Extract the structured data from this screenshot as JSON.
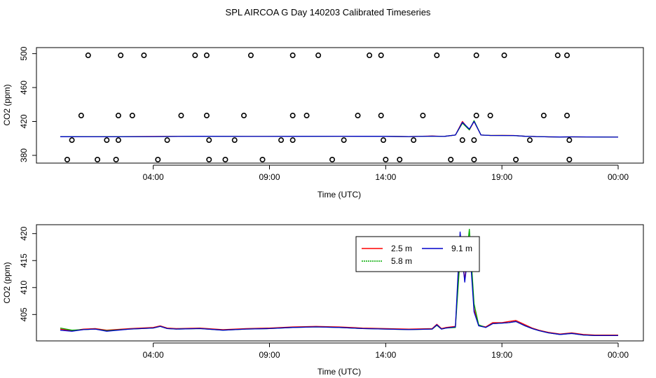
{
  "figure_title": "SPL AIRCOA G  Day 140203  Calibrated Timeseries",
  "colors": {
    "2.5 m": "#ff0000",
    "5.8 m": "#00aa00",
    "9.1 m": "#0000cc",
    "flag": "#000000"
  },
  "chart_data": [
    {
      "type": "scatter",
      "panel": "top",
      "xlabel": "Time (UTC)",
      "ylabel": "CO2 (ppm)",
      "x_tick_labels": [
        "04:00",
        "09:00",
        "14:00",
        "19:00",
        "00:00"
      ],
      "x_ticks": [
        4,
        9,
        14,
        19,
        24
      ],
      "y_ticks": [
        380,
        420,
        460,
        500
      ],
      "xlim": [
        0,
        24
      ],
      "ylim": [
        375,
        503
      ],
      "grid": false,
      "flag_points": [
        {
          "x": 0.3,
          "y": 375
        },
        {
          "x": 0.5,
          "y": 398
        },
        {
          "x": 0.9,
          "y": 427
        },
        {
          "x": 1.2,
          "y": 498
        },
        {
          "x": 1.6,
          "y": 375
        },
        {
          "x": 2.0,
          "y": 398
        },
        {
          "x": 2.4,
          "y": 375
        },
        {
          "x": 2.5,
          "y": 398
        },
        {
          "x": 2.5,
          "y": 427
        },
        {
          "x": 2.6,
          "y": 498
        },
        {
          "x": 3.1,
          "y": 427
        },
        {
          "x": 3.6,
          "y": 498
        },
        {
          "x": 4.2,
          "y": 375
        },
        {
          "x": 4.6,
          "y": 398
        },
        {
          "x": 5.2,
          "y": 427
        },
        {
          "x": 5.8,
          "y": 498
        },
        {
          "x": 6.3,
          "y": 498
        },
        {
          "x": 6.3,
          "y": 427
        },
        {
          "x": 6.4,
          "y": 398
        },
        {
          "x": 6.4,
          "y": 375
        },
        {
          "x": 7.1,
          "y": 375
        },
        {
          "x": 7.5,
          "y": 398
        },
        {
          "x": 7.9,
          "y": 427
        },
        {
          "x": 8.2,
          "y": 498
        },
        {
          "x": 8.7,
          "y": 375
        },
        {
          "x": 9.5,
          "y": 398
        },
        {
          "x": 10.0,
          "y": 398
        },
        {
          "x": 10.0,
          "y": 427
        },
        {
          "x": 10.0,
          "y": 498
        },
        {
          "x": 10.6,
          "y": 427
        },
        {
          "x": 11.1,
          "y": 498
        },
        {
          "x": 11.7,
          "y": 375
        },
        {
          "x": 12.2,
          "y": 398
        },
        {
          "x": 12.8,
          "y": 427
        },
        {
          "x": 13.3,
          "y": 498
        },
        {
          "x": 13.8,
          "y": 427
        },
        {
          "x": 13.8,
          "y": 498
        },
        {
          "x": 13.9,
          "y": 398
        },
        {
          "x": 14.0,
          "y": 375
        },
        {
          "x": 14.6,
          "y": 375
        },
        {
          "x": 15.2,
          "y": 398
        },
        {
          "x": 15.6,
          "y": 427
        },
        {
          "x": 16.2,
          "y": 498
        },
        {
          "x": 16.8,
          "y": 375
        },
        {
          "x": 17.3,
          "y": 398
        },
        {
          "x": 17.8,
          "y": 375
        },
        {
          "x": 17.8,
          "y": 398
        },
        {
          "x": 17.9,
          "y": 427
        },
        {
          "x": 17.9,
          "y": 498
        },
        {
          "x": 18.5,
          "y": 427
        },
        {
          "x": 19.1,
          "y": 498
        },
        {
          "x": 19.6,
          "y": 375
        },
        {
          "x": 20.2,
          "y": 398
        },
        {
          "x": 20.8,
          "y": 427
        },
        {
          "x": 21.4,
          "y": 498
        },
        {
          "x": 21.8,
          "y": 498
        },
        {
          "x": 21.8,
          "y": 427
        },
        {
          "x": 21.9,
          "y": 398
        },
        {
          "x": 21.9,
          "y": 375
        }
      ],
      "series": [
        {
          "name": "2.5 m",
          "x": [
            0,
            2,
            4,
            6,
            8,
            10,
            12,
            14,
            15,
            16,
            16.5,
            17,
            17.3,
            17.6,
            17.8,
            18.1,
            18.5,
            19,
            19.5,
            20,
            20.5,
            21,
            21.5,
            22,
            24
          ],
          "y": [
            402.2,
            402.0,
            402.3,
            402.6,
            402.3,
            402.4,
            402.6,
            402.4,
            402.2,
            402.8,
            402.3,
            404,
            420,
            410,
            420,
            404,
            403.5,
            403.6,
            403.5,
            402.5,
            402.2,
            401.8,
            401.7,
            401.8,
            401.5
          ]
        },
        {
          "name": "5.8 m",
          "x": [
            0,
            2,
            4,
            6,
            8,
            10,
            12,
            14,
            15,
            16,
            16.5,
            17,
            17.3,
            17.6,
            17.8,
            18.1,
            18.5,
            19,
            19.5,
            20,
            20.5,
            21,
            21.5,
            22,
            24
          ],
          "y": [
            402.1,
            402.0,
            402.2,
            402.5,
            402.3,
            402.4,
            402.6,
            402.4,
            402.2,
            402.7,
            402.3,
            404,
            418,
            410,
            421,
            404,
            403.5,
            403.5,
            403.4,
            402.5,
            402.2,
            401.8,
            401.7,
            401.8,
            401.5
          ]
        },
        {
          "name": "9.1 m",
          "x": [
            0,
            2,
            4,
            6,
            8,
            10,
            12,
            14,
            15,
            16,
            16.5,
            17,
            17.3,
            17.6,
            17.8,
            18.1,
            18.5,
            19,
            19.5,
            20,
            20.5,
            21,
            21.5,
            22,
            24
          ],
          "y": [
            402.0,
            401.9,
            402.2,
            402.5,
            402.3,
            402.4,
            402.6,
            402.4,
            402.2,
            402.7,
            402.3,
            404,
            419,
            411,
            420,
            404,
            403.5,
            403.4,
            403.4,
            402.5,
            402.2,
            401.8,
            401.7,
            401.8,
            401.5
          ]
        }
      ]
    },
    {
      "type": "line",
      "panel": "bottom",
      "xlabel": "Time (UTC)",
      "ylabel": "CO2 (ppm)",
      "x_tick_labels": [
        "04:00",
        "09:00",
        "14:00",
        "19:00",
        "00:00"
      ],
      "x_ticks": [
        4,
        9,
        14,
        19,
        24
      ],
      "y_ticks": [
        405,
        410,
        415,
        420
      ],
      "xlim": [
        0,
        24
      ],
      "ylim": [
        400.5,
        421
      ],
      "grid": false,
      "legend_position": "top-right",
      "legend": [
        "2.5 m",
        "5.8 m",
        "9.1 m"
      ],
      "series": [
        {
          "name": "2.5 m",
          "x": [
            0,
            0.5,
            1,
            1.5,
            2,
            3,
            4,
            4.3,
            4.6,
            5,
            6,
            7,
            8,
            9,
            10,
            11,
            12,
            13,
            14,
            15,
            16,
            16.2,
            16.4,
            16.6,
            17,
            17.2,
            17.4,
            17.6,
            17.8,
            18,
            18.3,
            18.6,
            19,
            19.3,
            19.6,
            20,
            20.3,
            20.6,
            21,
            21.5,
            22,
            22.5,
            23,
            24
          ],
          "y": [
            402.3,
            402.0,
            402.3,
            402.4,
            402.1,
            402.4,
            402.6,
            402.9,
            402.5,
            402.4,
            402.5,
            402.2,
            402.4,
            402.5,
            402.7,
            402.8,
            402.7,
            402.5,
            402.4,
            402.3,
            402.4,
            403.2,
            402.4,
            402.6,
            402.8,
            417.5,
            411.5,
            419.2,
            406,
            403,
            402.7,
            403.5,
            403.5,
            403.7,
            403.9,
            403.1,
            402.5,
            402.1,
            401.7,
            401.4,
            401.6,
            401.3,
            401.2,
            401.2
          ]
        },
        {
          "name": "5.8 m",
          "x": [
            0,
            0.5,
            1,
            1.5,
            2,
            3,
            4,
            4.3,
            4.6,
            5,
            6,
            7,
            8,
            9,
            10,
            11,
            12,
            13,
            14,
            15,
            16,
            16.2,
            16.4,
            16.6,
            17,
            17.2,
            17.4,
            17.6,
            17.8,
            18,
            18.3,
            18.6,
            19,
            19.3,
            19.6,
            20,
            20.3,
            20.6,
            21,
            21.5,
            22,
            22.5,
            23,
            24
          ],
          "y": [
            402.5,
            402.1,
            402.2,
            402.3,
            402.0,
            402.3,
            402.5,
            402.8,
            402.4,
            402.3,
            402.4,
            402.1,
            402.3,
            402.4,
            402.6,
            402.7,
            402.6,
            402.4,
            402.3,
            402.2,
            402.3,
            403.0,
            402.3,
            402.5,
            402.6,
            415.5,
            413,
            420.8,
            407,
            403.1,
            402.6,
            403.3,
            403.4,
            403.5,
            403.7,
            402.9,
            402.4,
            402.0,
            401.6,
            401.3,
            401.5,
            401.2,
            401.1,
            401.1
          ]
        },
        {
          "name": "9.1 m",
          "x": [
            0,
            0.5,
            1,
            1.5,
            2,
            3,
            4,
            4.3,
            4.6,
            5,
            6,
            7,
            8,
            9,
            10,
            11,
            12,
            13,
            14,
            15,
            16,
            16.2,
            16.4,
            16.6,
            17,
            17.2,
            17.4,
            17.6,
            17.8,
            18,
            18.3,
            18.6,
            19,
            19.3,
            19.6,
            20,
            20.3,
            20.6,
            21,
            21.5,
            22,
            22.5,
            23,
            24
          ],
          "y": [
            402.1,
            401.9,
            402.2,
            402.3,
            401.9,
            402.3,
            402.5,
            402.8,
            402.4,
            402.3,
            402.4,
            402.1,
            402.3,
            402.4,
            402.6,
            402.7,
            402.6,
            402.4,
            402.3,
            402.2,
            402.3,
            403.1,
            402.3,
            402.5,
            402.7,
            420.3,
            411,
            418.3,
            405.5,
            402.9,
            402.6,
            403.3,
            403.4,
            403.5,
            403.7,
            402.9,
            402.4,
            402.0,
            401.6,
            401.3,
            401.5,
            401.2,
            401.1,
            401.1
          ]
        }
      ]
    }
  ]
}
